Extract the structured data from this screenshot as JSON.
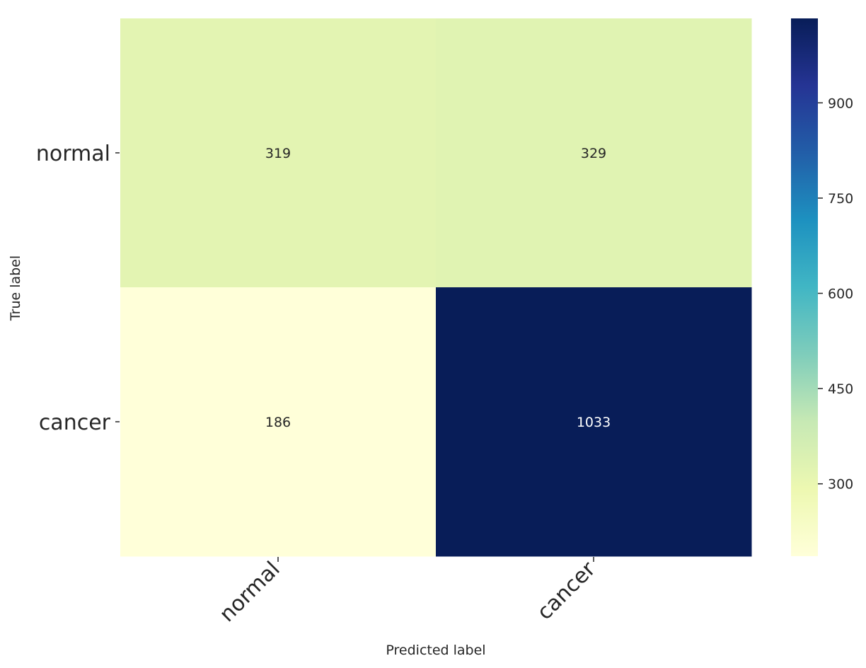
{
  "chart_data": {
    "type": "heatmap",
    "title": "",
    "xlabel": "Predicted label",
    "ylabel": "True label",
    "x_categories": [
      "normal",
      "cancer"
    ],
    "y_categories": [
      "normal",
      "cancer"
    ],
    "values": [
      [
        319,
        329
      ],
      [
        186,
        1033
      ]
    ],
    "colormap": "YlGnBu",
    "colorbar": {
      "range": [
        186,
        1033
      ],
      "ticks": [
        300,
        450,
        600,
        750,
        900
      ],
      "tick_labels": [
        "300",
        "450",
        "600",
        "750",
        "900"
      ]
    },
    "grid": false,
    "legend": "none",
    "colors": {
      "text_dark": "#262626",
      "text_light": "#ffffff"
    }
  }
}
